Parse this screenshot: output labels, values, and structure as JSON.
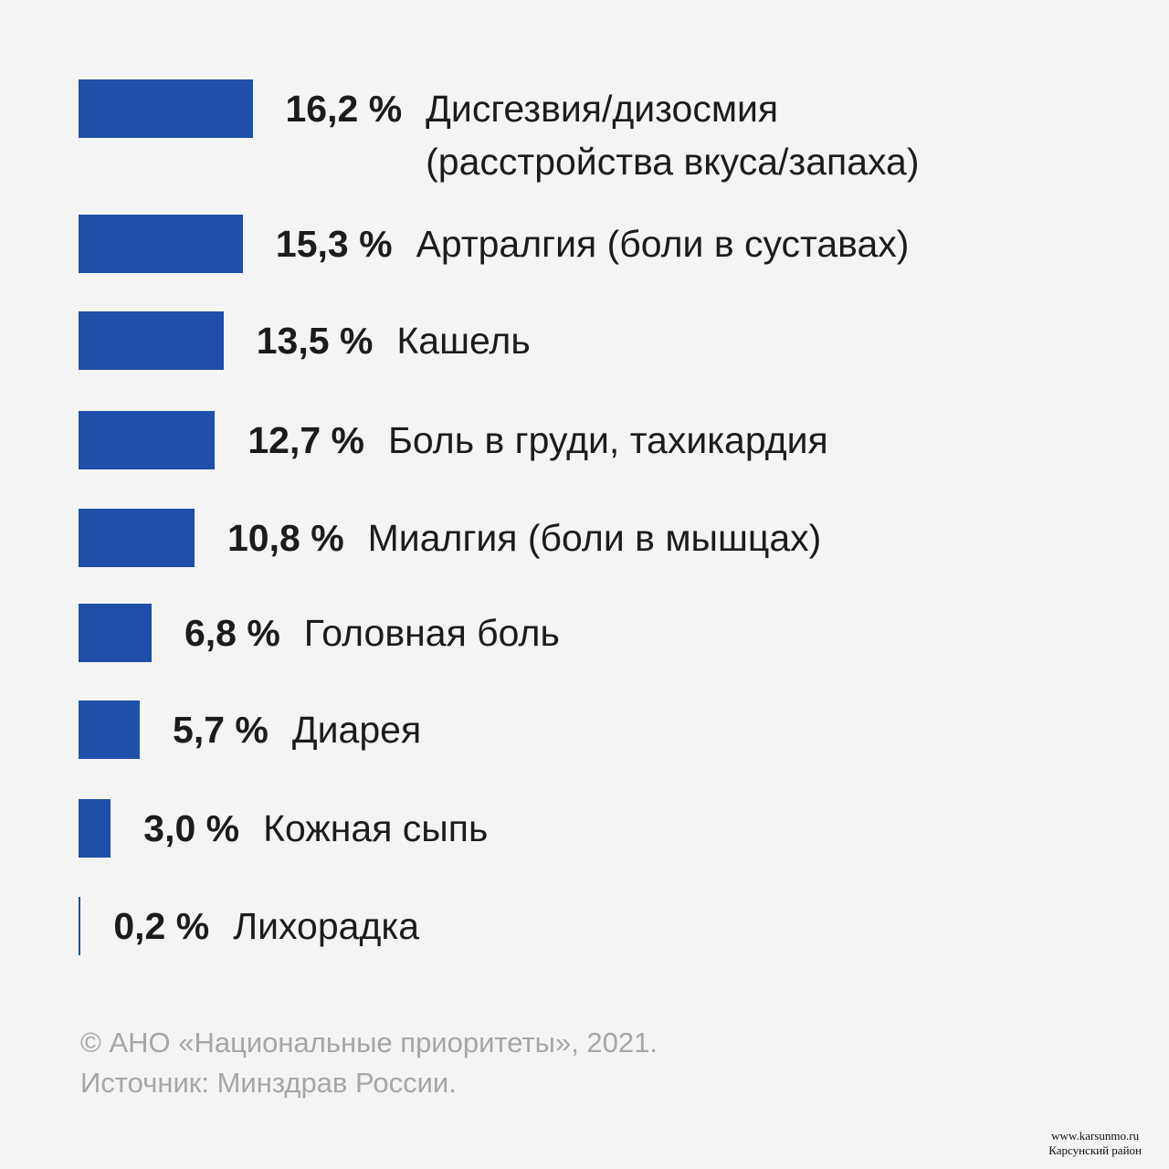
{
  "chart_data": {
    "type": "bar",
    "orientation": "horizontal",
    "bar_color": "#1f4fa8",
    "categories": [
      [
        "Дисгезвия/дизосмия",
        "(расстройства вкуса/запаха)"
      ],
      [
        "Артралгия (боли в суставах)"
      ],
      [
        "Кашель"
      ],
      [
        "Боль в груди, тахикардия"
      ],
      [
        "Миалгия (боли в мышцах)"
      ],
      [
        "Головная боль"
      ],
      [
        "Диарея"
      ],
      [
        "Кожная сыпь"
      ],
      [
        "Лихорадка"
      ]
    ],
    "values": [
      16.2,
      15.3,
      13.5,
      12.7,
      10.8,
      6.8,
      5.7,
      3.0,
      0.2
    ],
    "value_labels": [
      "16,2 %",
      "15,3 %",
      "13,5 %",
      "12,7 %",
      "10,8 %",
      "6,8 %",
      "5,7 %",
      "3,0 %",
      "0,2 %"
    ],
    "title": "",
    "xlabel": "",
    "ylabel": "",
    "grid": false
  },
  "footer": {
    "copyright": "© АНО «Национальные приоритеты», 2021.",
    "source": "Источник: Минздрав России."
  },
  "watermark": {
    "url": "www.karsunmo.ru",
    "name": "Карсунский район"
  }
}
